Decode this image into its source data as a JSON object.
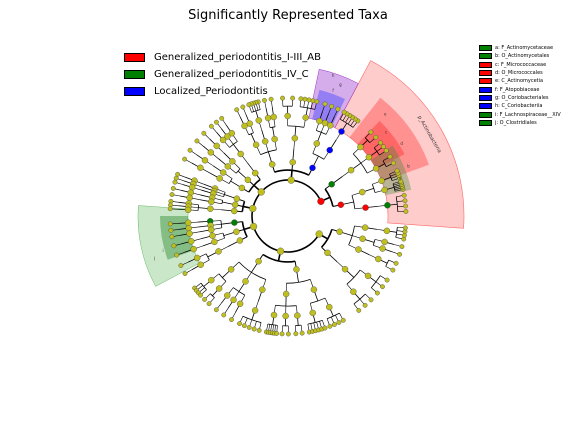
{
  "title": "Significantly Represented Taxa",
  "colors": {
    "group1": "#ff0000",
    "group2": "#008000",
    "group3": "#0000ff",
    "node_default": "#bfbf1f",
    "branch": "#000000"
  },
  "groups": [
    {
      "label": "Generalized_periodontitis_I-III_AB",
      "color": "#ff0000"
    },
    {
      "label": "Generalized_periodontitis_IV_C",
      "color": "#008000"
    },
    {
      "label": "Localized_Periodontitis",
      "color": "#0000ff"
    }
  ],
  "taxa": [
    {
      "label": "a: F_Actinomycetaceae",
      "color": "#008000"
    },
    {
      "label": "b: O_Actinomycetales",
      "color": "#008000"
    },
    {
      "label": "c: F_Micrococcaceae",
      "color": "#ff0000"
    },
    {
      "label": "d: O_Micrococcales",
      "color": "#ff0000"
    },
    {
      "label": "e: C_Actinomycetia",
      "color": "#ff0000"
    },
    {
      "label": "f: F_Atopobiaceae",
      "color": "#0000ff"
    },
    {
      "label": "g: O_Coriobacteriales",
      "color": "#0000ff"
    },
    {
      "label": "h: C_Coriobacteriia",
      "color": "#0000ff"
    },
    {
      "label": "i: F_Lachnospiraceae__XIV",
      "color": "#008000"
    },
    {
      "label": "j: O_Clostridiales",
      "color": "#008000"
    }
  ],
  "clade_labels": {
    "phylum": "p_Actinobacteria",
    "a": "a",
    "b": "b",
    "c": "c",
    "d": "d",
    "e": "e",
    "f": "f",
    "g": "g",
    "h": "h",
    "i": "i",
    "j": "j"
  }
}
